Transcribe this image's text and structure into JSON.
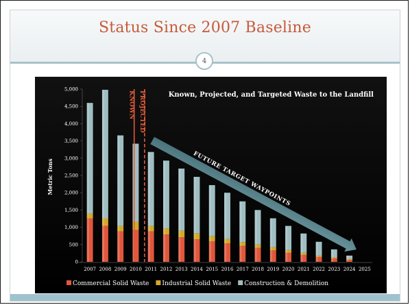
{
  "slide": {
    "title": "Status Since 2007 Baseline",
    "page_number": "4"
  },
  "chart_data": {
    "type": "bar",
    "stacked": true,
    "title": "Known, Projected, and Targeted Waste to the Landfill",
    "xlabel": "",
    "ylabel": "Metric Tons",
    "ylim": [
      0,
      5000
    ],
    "yticks": [
      "0",
      "500",
      "1,000",
      "1,500",
      "2,000",
      "2,500",
      "3,000",
      "3,500",
      "4,000",
      "4,500",
      "5,000"
    ],
    "categories": [
      "2007",
      "2008",
      "2009",
      "2010",
      "2011",
      "2012",
      "2013",
      "2014",
      "2015",
      "2016",
      "2017",
      "2018",
      "2019",
      "2020",
      "2021",
      "2022",
      "2023",
      "2024",
      "2025"
    ],
    "series": [
      {
        "name": "Commercial Solid Waste",
        "color": "#e0573c",
        "values": [
          1260,
          1040,
          880,
          920,
          880,
          790,
          710,
          650,
          590,
          530,
          460,
          400,
          330,
          260,
          200,
          140,
          100,
          60,
          0
        ]
      },
      {
        "name": "Industrial Solid Waste",
        "color": "#d4a928",
        "values": [
          140,
          220,
          160,
          240,
          160,
          180,
          190,
          170,
          150,
          130,
          110,
          100,
          90,
          80,
          60,
          40,
          30,
          20,
          0
        ]
      },
      {
        "name": "Construction & Demolition",
        "color": "#9fbec2",
        "values": [
          3200,
          3720,
          2620,
          2260,
          2140,
          1960,
          1800,
          1640,
          1480,
          1340,
          1180,
          1000,
          840,
          700,
          560,
          400,
          230,
          100,
          0
        ]
      }
    ],
    "legend_position": "bottom",
    "grid": false,
    "annotations": [
      {
        "text": "KNOWN",
        "color": "#e05a3a"
      },
      {
        "text": "PROJECTED",
        "color": "#e05a3a"
      },
      {
        "text": "FUTURE TARGET WAYPOINTS",
        "color": "#ffffff"
      }
    ],
    "background_color": "#0a0a0a"
  }
}
